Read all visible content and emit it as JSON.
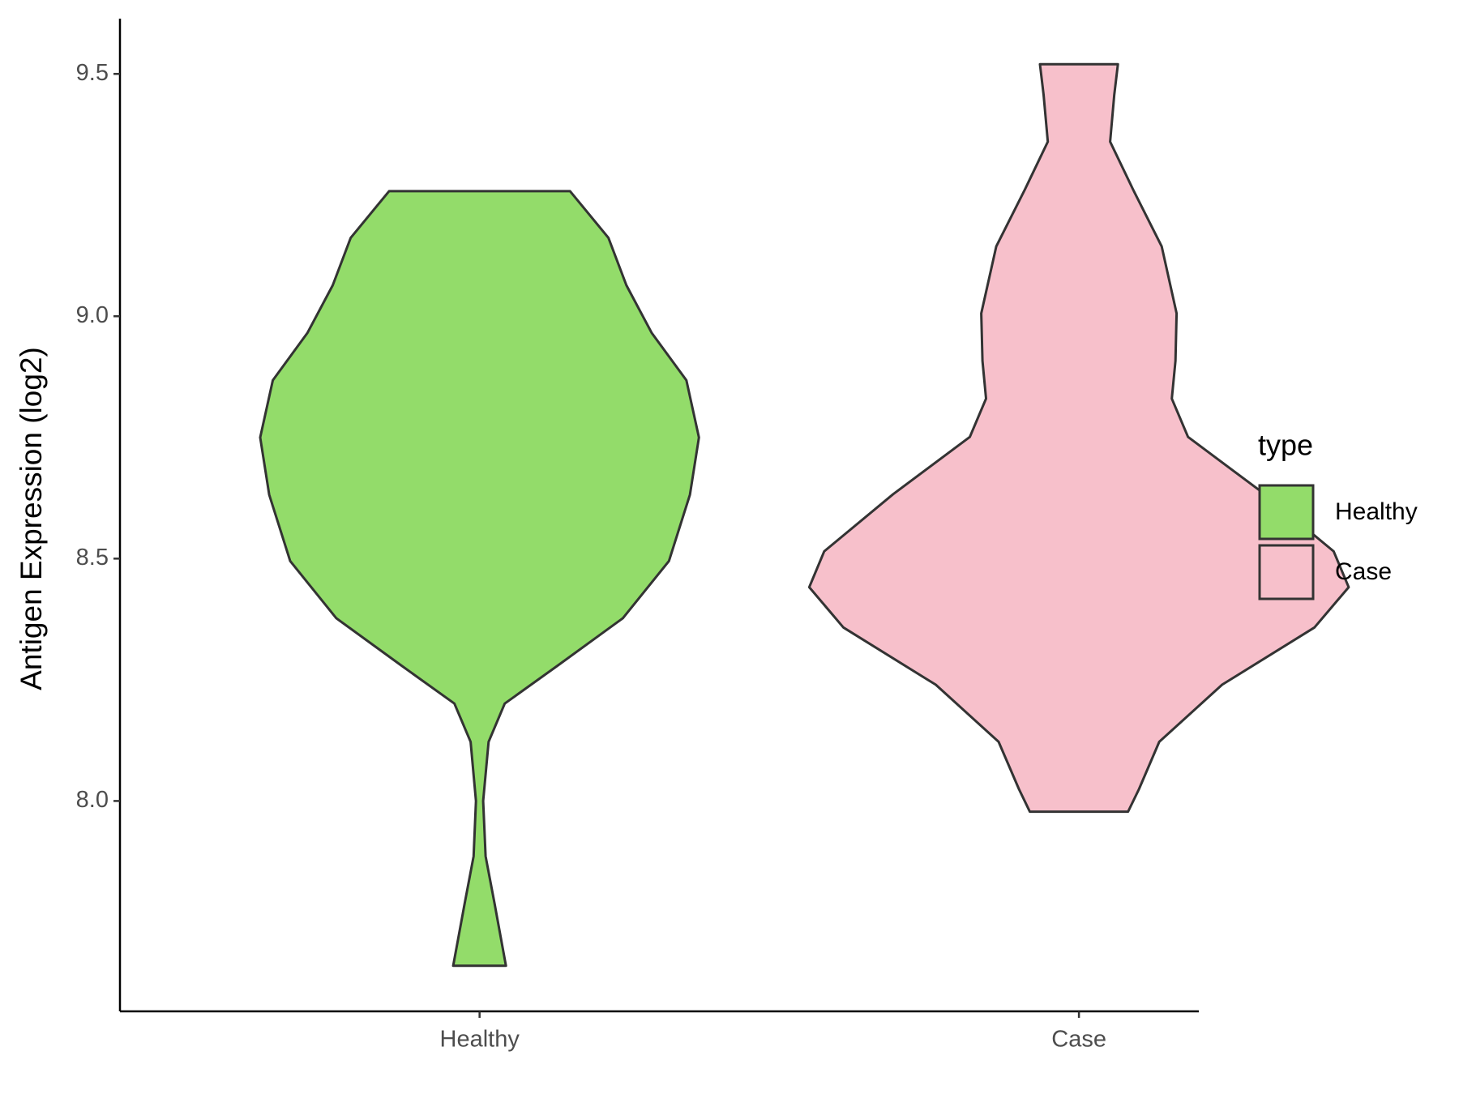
{
  "chart_data": {
    "type": "violin",
    "y_label": "Antigen Expression (log2)",
    "categories": [
      "Healthy",
      "Case"
    ],
    "legend_title": "type",
    "legend": "right",
    "ylim": [
      7.566,
      9.614
    ],
    "yticks": [
      {
        "value": 8,
        "label": "8.0"
      },
      8.5,
      {
        "value": 9,
        "label": "9.0"
      },
      9.5
    ],
    "series": [
      {
        "name": "Healthy",
        "color": "#93dc6a",
        "y": [
          9.258,
          9.162,
          9.064,
          8.966,
          8.868,
          8.75,
          8.632,
          8.495,
          8.377,
          8.279,
          8.201,
          8.122,
          8.0,
          7.886,
          7.788,
          7.66
        ],
        "half_width": [
          0.151,
          0.215,
          0.245,
          0.287,
          0.345,
          0.366,
          0.351,
          0.316,
          0.239,
          0.13,
          0.042,
          0.015,
          0.006,
          0.01,
          0.025,
          0.044
        ]
      },
      {
        "name": "Case",
        "color": "#f7c0cb",
        "y": [
          9.52,
          9.457,
          9.36,
          9.262,
          9.144,
          9.006,
          8.908,
          8.83,
          8.751,
          8.633,
          8.515,
          8.441,
          8.358,
          8.24,
          8.122,
          8.024,
          7.978
        ],
        "half_width": [
          0.065,
          0.059,
          0.052,
          0.09,
          0.138,
          0.163,
          0.161,
          0.155,
          0.182,
          0.31,
          0.425,
          0.45,
          0.393,
          0.239,
          0.134,
          0.1,
          0.082
        ]
      }
    ]
  }
}
